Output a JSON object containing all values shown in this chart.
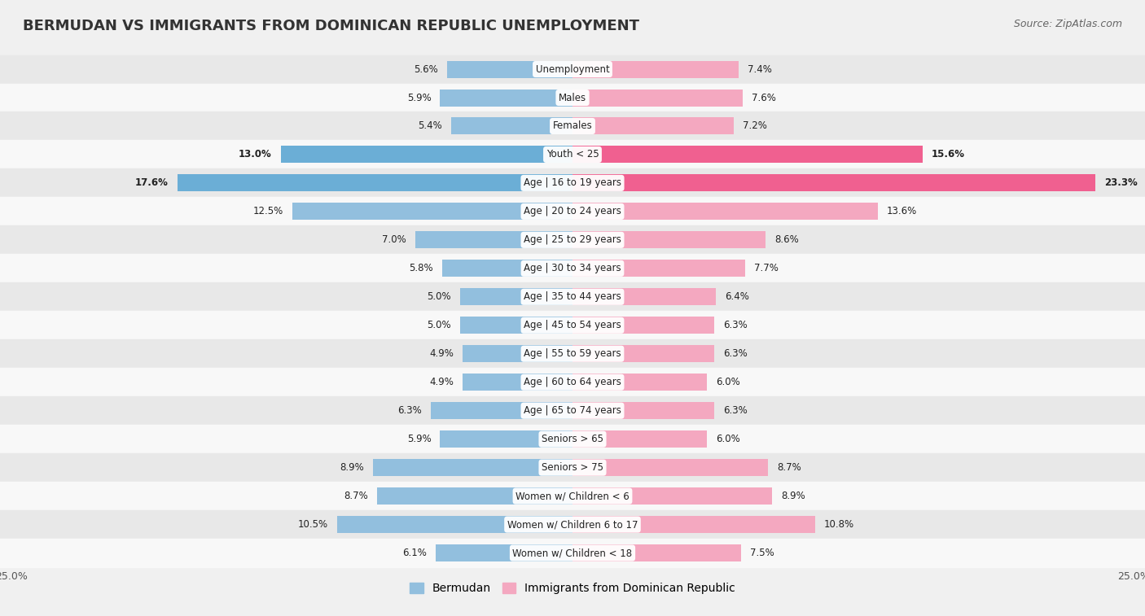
{
  "title": "BERMUDAN VS IMMIGRANTS FROM DOMINICAN REPUBLIC UNEMPLOYMENT",
  "source": "Source: ZipAtlas.com",
  "categories": [
    "Unemployment",
    "Males",
    "Females",
    "Youth < 25",
    "Age | 16 to 19 years",
    "Age | 20 to 24 years",
    "Age | 25 to 29 years",
    "Age | 30 to 34 years",
    "Age | 35 to 44 years",
    "Age | 45 to 54 years",
    "Age | 55 to 59 years",
    "Age | 60 to 64 years",
    "Age | 65 to 74 years",
    "Seniors > 65",
    "Seniors > 75",
    "Women w/ Children < 6",
    "Women w/ Children 6 to 17",
    "Women w/ Children < 18"
  ],
  "bermudan": [
    5.6,
    5.9,
    5.4,
    13.0,
    17.6,
    12.5,
    7.0,
    5.8,
    5.0,
    5.0,
    4.9,
    4.9,
    6.3,
    5.9,
    8.9,
    8.7,
    10.5,
    6.1
  ],
  "dominican": [
    7.4,
    7.6,
    7.2,
    15.6,
    23.3,
    13.6,
    8.6,
    7.7,
    6.4,
    6.3,
    6.3,
    6.0,
    6.3,
    6.0,
    8.7,
    8.9,
    10.8,
    7.5
  ],
  "bermudan_color": "#92bfde",
  "dominican_color": "#f4a8c0",
  "highlight_bermudan_color": "#6baed6",
  "highlight_dominican_color": "#f06090",
  "bar_height": 0.6,
  "xlim_half": 25.0,
  "bg_color": "#f0f0f0",
  "row_even_color": "#e8e8e8",
  "row_odd_color": "#f8f8f8",
  "title_fontsize": 13,
  "label_fontsize": 8.5,
  "value_fontsize": 8.5,
  "legend_fontsize": 10,
  "highlight_rows": [
    "Youth < 25",
    "Age | 16 to 19 years"
  ]
}
